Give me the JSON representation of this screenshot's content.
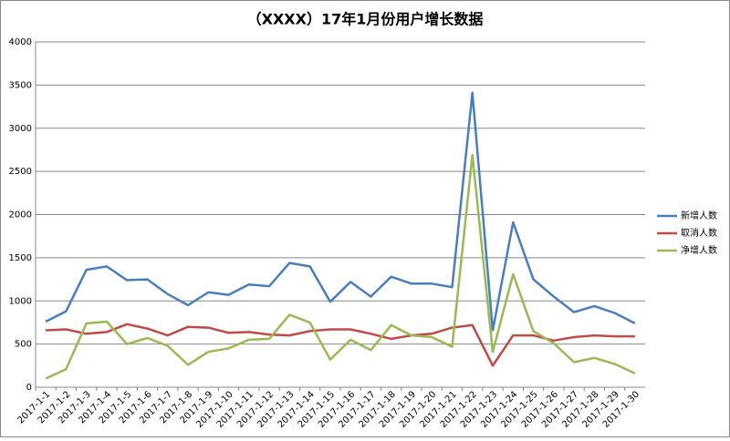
{
  "chart_data": {
    "type": "line",
    "title": "（XXXX）17年1月份用户增长数据",
    "categories": [
      "2017-1-1",
      "2017-1-2",
      "2017-1-3",
      "2017-1-4",
      "2017-1-5",
      "2017-1-6",
      "2017-1-7",
      "2017-1-8",
      "2017-1-9",
      "2017-1-10",
      "2017-1-11",
      "2017-1-12",
      "2017-1-13",
      "2017-1-14",
      "2017-1-15",
      "2017-1-16",
      "2017-1-17",
      "2017-1-18",
      "2017-1-19",
      "2017-1-20",
      "2017-1-21",
      "2017-1-22",
      "2017-1-23",
      "2017-1-24",
      "2017-1-25",
      "2017-1-26",
      "2017-1-27",
      "2017-1-28",
      "2017-1-29",
      "2017-1-30"
    ],
    "series": [
      {
        "name": "新增人数",
        "color": "#4a7ebb",
        "values": [
          760,
          880,
          1360,
          1400,
          1240,
          1250,
          1080,
          950,
          1100,
          1070,
          1190,
          1170,
          1440,
          1400,
          990,
          1220,
          1050,
          1280,
          1200,
          1200,
          1160,
          3410,
          660,
          1910,
          1250,
          1050,
          870,
          940,
          860,
          740
        ]
      },
      {
        "name": "取消人数",
        "color": "#be4b48",
        "values": [
          660,
          670,
          620,
          640,
          730,
          680,
          600,
          700,
          690,
          630,
          640,
          610,
          600,
          650,
          670,
          670,
          620,
          560,
          600,
          620,
          690,
          720,
          250,
          600,
          600,
          540,
          580,
          600,
          590,
          590
        ]
      },
      {
        "name": "净增人数",
        "color": "#98b954",
        "values": [
          100,
          210,
          740,
          760,
          500,
          570,
          480,
          260,
          410,
          450,
          550,
          560,
          840,
          750,
          320,
          550,
          430,
          720,
          600,
          580,
          470,
          2690,
          410,
          1310,
          650,
          510,
          290,
          340,
          270,
          160
        ]
      }
    ],
    "ylim": [
      0,
      4000
    ],
    "yticks": [
      0,
      500,
      1000,
      1500,
      2000,
      2500,
      3000,
      3500,
      4000
    ],
    "grid": true,
    "legend": "right"
  }
}
